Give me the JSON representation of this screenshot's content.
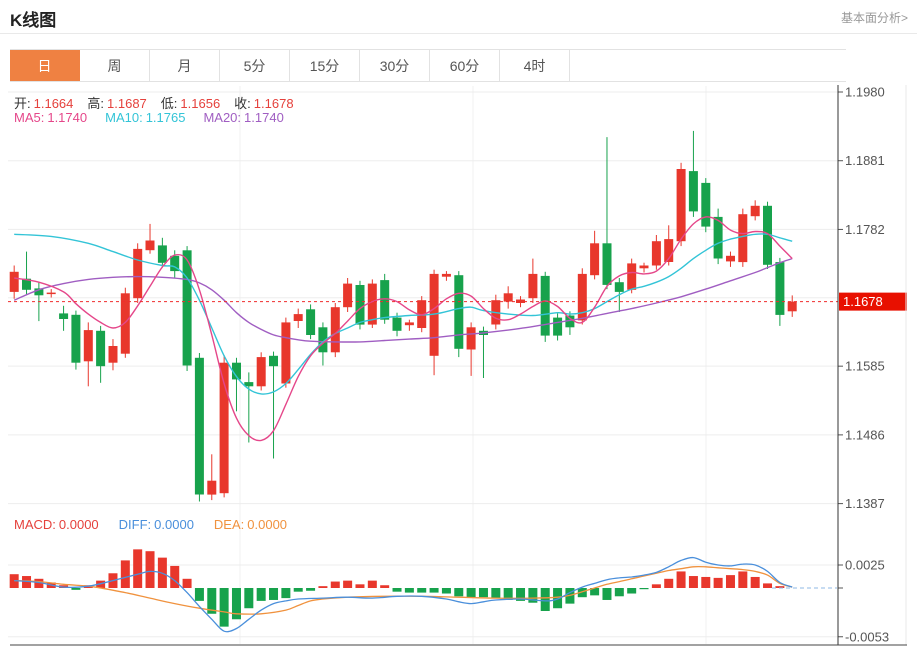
{
  "header": {
    "title": "K线图",
    "link": "基本面分析>"
  },
  "tabs": {
    "items": [
      "日",
      "周",
      "月",
      "5分",
      "15分",
      "30分",
      "60分",
      "4时"
    ],
    "selected": 0
  },
  "ohlc": {
    "open_label": "开:",
    "open": "1.1664",
    "high_label": "高:",
    "high": "1.1687",
    "low_label": "低:",
    "low": "1.1656",
    "close_label": "收:",
    "close": "1.1678"
  },
  "ma": {
    "ma5_label": "MA5:",
    "ma5": "1.1740",
    "ma10_label": "MA10:",
    "ma10": "1.1765",
    "ma20_label": "MA20:",
    "ma20": "1.1740"
  },
  "macd_header": {
    "macd_label": "MACD:",
    "macd": "0.0000",
    "diff_label": "DIFF:",
    "diff": "0.0000",
    "dea_label": "DEA:",
    "dea": "0.0000"
  },
  "colors": {
    "up": "#e8372c",
    "down": "#17a24c",
    "ma5": "#e5478a",
    "ma10": "#33c4d7",
    "ma20": "#a05ec2",
    "diff": "#4a8fdb",
    "dea": "#f0923e",
    "tab_accent": "#ef8142",
    "badge_bg": "#e81000",
    "value_red": "#e5413c",
    "axis_text": "#555",
    "grid": "#ededed",
    "vgrid": "#f0f0f0",
    "axis_line": "#333",
    "price_dash": "#ef2d2d",
    "zero_dash": "#8fb8e6"
  },
  "chart_data": {
    "type": "candlestick+macd",
    "price_axis": {
      "ticks": [
        {
          "label": "1.1980",
          "p": 1.198
        },
        {
          "label": "1.1881",
          "p": 1.1881
        },
        {
          "label": "1.1782",
          "p": 1.1782
        },
        {
          "label": "1.1585",
          "p": 1.1585
        },
        {
          "label": "1.1486",
          "p": 1.1486
        },
        {
          "label": "1.1387",
          "p": 1.1387
        }
      ],
      "unlabeled_grids": [
        1.16835
      ],
      "badge": {
        "label": "1.1678",
        "p": 1.1678
      }
    },
    "current_price": 1.1678,
    "candles": [
      [
        1.1692,
        1.173,
        1.1682,
        1.1721
      ],
      [
        1.1711,
        1.175,
        1.1688,
        1.1695
      ],
      [
        1.1697,
        1.1706,
        1.165,
        1.1687
      ],
      [
        1.1689,
        1.1696,
        1.1684,
        1.1691
      ],
      [
        1.1661,
        1.1672,
        1.1636,
        1.1653
      ],
      [
        1.1659,
        1.1665,
        1.158,
        1.159
      ],
      [
        1.1592,
        1.1648,
        1.1556,
        1.1637
      ],
      [
        1.1636,
        1.1643,
        1.1561,
        1.1585
      ],
      [
        1.159,
        1.1624,
        1.1579,
        1.1614
      ],
      [
        1.1603,
        1.1698,
        1.1597,
        1.169
      ],
      [
        1.1683,
        1.1762,
        1.1676,
        1.1754
      ],
      [
        1.1752,
        1.179,
        1.1747,
        1.1766
      ],
      [
        1.1759,
        1.177,
        1.1727,
        1.1734
      ],
      [
        1.1744,
        1.1752,
        1.1712,
        1.1722
      ],
      [
        1.1752,
        1.1758,
        1.1578,
        1.1586
      ],
      [
        1.1597,
        1.1604,
        1.139,
        1.14
      ],
      [
        1.14,
        1.1458,
        1.1392,
        1.142
      ],
      [
        1.1402,
        1.1601,
        1.1396,
        1.159
      ],
      [
        1.159,
        1.1597,
        1.152,
        1.1566
      ],
      [
        1.1562,
        1.1576,
        1.1475,
        1.1556
      ],
      [
        1.1556,
        1.1605,
        1.155,
        1.1598
      ],
      [
        1.16,
        1.1606,
        1.1452,
        1.1585
      ],
      [
        1.156,
        1.1655,
        1.1554,
        1.1648
      ],
      [
        1.165,
        1.1668,
        1.164,
        1.166
      ],
      [
        1.1667,
        1.1674,
        1.1624,
        1.163
      ],
      [
        1.1641,
        1.1648,
        1.1586,
        1.1605
      ],
      [
        1.1605,
        1.1676,
        1.1598,
        1.167
      ],
      [
        1.167,
        1.1712,
        1.1663,
        1.1704
      ],
      [
        1.1702,
        1.1708,
        1.1638,
        1.1645
      ],
      [
        1.1645,
        1.171,
        1.164,
        1.1704
      ],
      [
        1.1709,
        1.1718,
        1.1646,
        1.1652
      ],
      [
        1.1655,
        1.1662,
        1.1628,
        1.1636
      ],
      [
        1.1644,
        1.1652,
        1.1636,
        1.1648
      ],
      [
        1.164,
        1.1686,
        1.1634,
        1.168
      ],
      [
        1.16,
        1.1724,
        1.1572,
        1.1718
      ],
      [
        1.1714,
        1.1722,
        1.1708,
        1.1718
      ],
      [
        1.1716,
        1.1722,
        1.1598,
        1.161
      ],
      [
        1.1609,
        1.1648,
        1.1571,
        1.1641
      ],
      [
        1.1636,
        1.1642,
        1.1568,
        1.163
      ],
      [
        1.1645,
        1.1688,
        1.1638,
        1.168
      ],
      [
        1.1678,
        1.17,
        1.1668,
        1.169
      ],
      [
        1.1676,
        1.1686,
        1.167,
        1.1681
      ],
      [
        1.1683,
        1.174,
        1.1676,
        1.1718
      ],
      [
        1.1715,
        1.1721,
        1.162,
        1.1629
      ],
      [
        1.1655,
        1.1661,
        1.1622,
        1.1629
      ],
      [
        1.1658,
        1.1664,
        1.163,
        1.1641
      ],
      [
        1.1651,
        1.1726,
        1.1645,
        1.1718
      ],
      [
        1.1716,
        1.178,
        1.171,
        1.1762
      ],
      [
        1.1762,
        1.1915,
        1.1696,
        1.1702
      ],
      [
        1.1706,
        1.1712,
        1.1663,
        1.1692
      ],
      [
        1.1695,
        1.174,
        1.169,
        1.1733
      ],
      [
        1.1726,
        1.1734,
        1.172,
        1.173
      ],
      [
        1.173,
        1.1774,
        1.1724,
        1.1765
      ],
      [
        1.1735,
        1.1788,
        1.173,
        1.1768
      ],
      [
        1.1765,
        1.1878,
        1.1758,
        1.1869
      ],
      [
        1.1866,
        1.1924,
        1.18,
        1.1808
      ],
      [
        1.1849,
        1.1856,
        1.1778,
        1.1786
      ],
      [
        1.18,
        1.1812,
        1.1732,
        1.174
      ],
      [
        1.1736,
        1.175,
        1.1728,
        1.1744
      ],
      [
        1.1735,
        1.1812,
        1.1728,
        1.1804
      ],
      [
        1.1801,
        1.1824,
        1.1795,
        1.1816
      ],
      [
        1.1816,
        1.1822,
        1.1725,
        1.1731
      ],
      [
        1.1735,
        1.1741,
        1.1643,
        1.1659
      ],
      [
        1.1664,
        1.1687,
        1.1656,
        1.1678
      ]
    ],
    "ma5": [
      [
        0,
        1.1712
      ],
      [
        2,
        1.1706
      ],
      [
        4,
        1.1692
      ],
      [
        5,
        1.1675
      ],
      [
        6,
        1.166
      ],
      [
        7,
        1.1648
      ],
      [
        8,
        1.164
      ],
      [
        9,
        1.1648
      ],
      [
        10,
        1.1672
      ],
      [
        11,
        1.17
      ],
      [
        12,
        1.1728
      ],
      [
        13,
        1.1745
      ],
      [
        14,
        1.1738
      ],
      [
        15,
        1.1695
      ],
      [
        16,
        1.163
      ],
      [
        17,
        1.156
      ],
      [
        18,
        1.151
      ],
      [
        19,
        1.1485
      ],
      [
        20,
        1.1478
      ],
      [
        21,
        1.1492
      ],
      [
        22,
        1.153
      ],
      [
        23,
        1.157
      ],
      [
        24,
        1.16
      ],
      [
        25,
        1.1618
      ],
      [
        26,
        1.1632
      ],
      [
        27,
        1.165
      ],
      [
        28,
        1.1668
      ],
      [
        29,
        1.1678
      ],
      [
        30,
        1.1682
      ],
      [
        31,
        1.1678
      ],
      [
        32,
        1.1666
      ],
      [
        33,
        1.1659
      ],
      [
        34,
        1.1668
      ],
      [
        35,
        1.1682
      ],
      [
        36,
        1.169
      ],
      [
        37,
        1.1686
      ],
      [
        38,
        1.1668
      ],
      [
        39,
        1.1654
      ],
      [
        40,
        1.1652
      ],
      [
        41,
        1.166
      ],
      [
        42,
        1.1671
      ],
      [
        43,
        1.1679
      ],
      [
        44,
        1.1671
      ],
      [
        45,
        1.1654
      ],
      [
        46,
        1.1648
      ],
      [
        47,
        1.167
      ],
      [
        48,
        1.17
      ],
      [
        49,
        1.1715
      ],
      [
        50,
        1.172
      ],
      [
        51,
        1.1718
      ],
      [
        52,
        1.1722
      ],
      [
        53,
        1.174
      ],
      [
        54,
        1.1768
      ],
      [
        55,
        1.179
      ],
      [
        56,
        1.18
      ],
      [
        57,
        1.1795
      ],
      [
        58,
        1.1781
      ],
      [
        59,
        1.1776
      ],
      [
        60,
        1.1779
      ],
      [
        61,
        1.1776
      ],
      [
        62,
        1.1758
      ],
      [
        63,
        1.174
      ]
    ],
    "ma10": [
      [
        0,
        1.1775
      ],
      [
        3,
        1.1772
      ],
      [
        6,
        1.1762
      ],
      [
        8,
        1.175
      ],
      [
        10,
        1.1738
      ],
      [
        12,
        1.173
      ],
      [
        13,
        1.1728
      ],
      [
        14,
        1.1712
      ],
      [
        15,
        1.168
      ],
      [
        16,
        1.164
      ],
      [
        17,
        1.16
      ],
      [
        18,
        1.157
      ],
      [
        19,
        1.1552
      ],
      [
        20,
        1.1545
      ],
      [
        21,
        1.1548
      ],
      [
        22,
        1.156
      ],
      [
        23,
        1.158
      ],
      [
        24,
        1.1602
      ],
      [
        25,
        1.162
      ],
      [
        26,
        1.1632
      ],
      [
        27,
        1.164
      ],
      [
        28,
        1.1648
      ],
      [
        29,
        1.1652
      ],
      [
        30,
        1.1655
      ],
      [
        32,
        1.1658
      ],
      [
        34,
        1.166
      ],
      [
        36,
        1.1668
      ],
      [
        37,
        1.167
      ],
      [
        38,
        1.1665
      ],
      [
        40,
        1.166
      ],
      [
        42,
        1.1658
      ],
      [
        44,
        1.1662
      ],
      [
        45,
        1.166
      ],
      [
        46,
        1.1662
      ],
      [
        47,
        1.1668
      ],
      [
        48,
        1.1678
      ],
      [
        49,
        1.1688
      ],
      [
        50,
        1.1696
      ],
      [
        51,
        1.17
      ],
      [
        52,
        1.1706
      ],
      [
        53,
        1.1714
      ],
      [
        54,
        1.1726
      ],
      [
        55,
        1.174
      ],
      [
        56,
        1.1752
      ],
      [
        57,
        1.1762
      ],
      [
        58,
        1.1768
      ],
      [
        59,
        1.1772
      ],
      [
        60,
        1.1775
      ],
      [
        61,
        1.1775
      ],
      [
        62,
        1.177
      ],
      [
        63,
        1.1765
      ]
    ],
    "ma20": [
      [
        0,
        1.168
      ],
      [
        2,
        1.1695
      ],
      [
        4,
        1.1704
      ],
      [
        6,
        1.171
      ],
      [
        8,
        1.1713
      ],
      [
        10,
        1.1714
      ],
      [
        12,
        1.1713
      ],
      [
        14,
        1.171
      ],
      [
        15,
        1.1705
      ],
      [
        16,
        1.1695
      ],
      [
        17,
        1.168
      ],
      [
        18,
        1.1662
      ],
      [
        19,
        1.1648
      ],
      [
        20,
        1.1638
      ],
      [
        21,
        1.163
      ],
      [
        22,
        1.1626
      ],
      [
        23,
        1.1623
      ],
      [
        24,
        1.1621
      ],
      [
        26,
        1.162
      ],
      [
        28,
        1.162
      ],
      [
        30,
        1.1622
      ],
      [
        32,
        1.1624
      ],
      [
        34,
        1.1626
      ],
      [
        36,
        1.163
      ],
      [
        38,
        1.1633
      ],
      [
        40,
        1.1637
      ],
      [
        42,
        1.1642
      ],
      [
        44,
        1.1648
      ],
      [
        46,
        1.1654
      ],
      [
        48,
        1.1661
      ],
      [
        50,
        1.1668
      ],
      [
        52,
        1.1676
      ],
      [
        54,
        1.1685
      ],
      [
        56,
        1.1696
      ],
      [
        58,
        1.1708
      ],
      [
        60,
        1.172
      ],
      [
        61,
        1.1727
      ],
      [
        62,
        1.1734
      ],
      [
        63,
        1.174
      ]
    ],
    "macd": {
      "ticks": [
        {
          "label": "0.0025",
          "v": 0.0025
        },
        {
          "label": "-0.0053",
          "v": -0.0053
        }
      ],
      "unlabeled_ticks": [
        0
      ],
      "hist": [
        0.0015,
        0.0013,
        0.001,
        0.0006,
        0.0003,
        -0.0002,
        0.0003,
        0.0008,
        0.0016,
        0.003,
        0.0042,
        0.004,
        0.0033,
        0.0024,
        0.001,
        -0.0014,
        -0.0028,
        -0.0042,
        -0.0034,
        -0.0022,
        -0.0014,
        -0.0013,
        -0.0011,
        -0.0004,
        -0.0003,
        0.0002,
        0.0007,
        0.0008,
        0.0004,
        0.0008,
        0.0003,
        -0.0004,
        -0.0005,
        -0.0005,
        -0.0005,
        -0.0006,
        -0.0009,
        -0.001,
        -0.001,
        -0.0011,
        -0.0013,
        -0.0014,
        -0.0016,
        -0.0025,
        -0.0022,
        -0.0017,
        -0.001,
        -0.0008,
        -0.0013,
        -0.0009,
        -0.0006,
        -0.0001,
        0.0004,
        0.001,
        0.0018,
        0.0013,
        0.0012,
        0.0011,
        0.0014,
        0.0018,
        0.0012,
        0.0005,
        0.0002,
        0.0
      ],
      "diff": [
        [
          0,
          0.0008
        ],
        [
          2,
          0.0006
        ],
        [
          4,
          0.0001
        ],
        [
          6,
          0.0002
        ],
        [
          8,
          0.0008
        ],
        [
          10,
          0.0015
        ],
        [
          11,
          0.0018
        ],
        [
          12,
          0.0016
        ],
        [
          13,
          0.0008
        ],
        [
          14,
          -0.0005
        ],
        [
          15,
          -0.002
        ],
        [
          16,
          -0.0034
        ],
        [
          17,
          -0.0047
        ],
        [
          18,
          -0.0044
        ],
        [
          19,
          -0.0034
        ],
        [
          20,
          -0.0024
        ],
        [
          21,
          -0.0017
        ],
        [
          22,
          -0.0014
        ],
        [
          23,
          -0.0012
        ],
        [
          25,
          -0.0011
        ],
        [
          27,
          -0.001
        ],
        [
          29,
          -0.0011
        ],
        [
          31,
          -0.0009
        ],
        [
          33,
          -0.0009
        ],
        [
          35,
          -0.0012
        ],
        [
          36,
          -0.0015
        ],
        [
          37,
          -0.0017
        ],
        [
          38,
          -0.0015
        ],
        [
          39,
          -0.0013
        ],
        [
          41,
          -0.0012
        ],
        [
          43,
          -0.0014
        ],
        [
          44,
          -0.0012
        ],
        [
          45,
          -0.0005
        ],
        [
          46,
          0.0001
        ],
        [
          47,
          0.0005
        ],
        [
          48,
          0.0009
        ],
        [
          49,
          0.0011
        ],
        [
          50,
          0.0012
        ],
        [
          51,
          0.0014
        ],
        [
          52,
          0.0017
        ],
        [
          53,
          0.0023
        ],
        [
          54,
          0.003
        ],
        [
          55,
          0.0033
        ],
        [
          56,
          0.0028
        ],
        [
          57,
          0.0025
        ],
        [
          58,
          0.0024
        ],
        [
          59,
          0.0026
        ],
        [
          60,
          0.0025
        ],
        [
          61,
          0.0018
        ],
        [
          62,
          0.0006
        ],
        [
          63,
          0.0001
        ]
      ],
      "dea": [
        [
          0,
          0.0008
        ],
        [
          2,
          0.0007
        ],
        [
          4,
          0.0004
        ],
        [
          6,
          0.0002
        ],
        [
          7,
          0.0
        ],
        [
          9,
          -0.0005
        ],
        [
          11,
          -0.0011
        ],
        [
          13,
          -0.0017
        ],
        [
          15,
          -0.0022
        ],
        [
          17,
          -0.0026
        ],
        [
          18,
          -0.0028
        ],
        [
          20,
          -0.0028
        ],
        [
          22,
          -0.0024
        ],
        [
          23,
          -0.0019
        ],
        [
          24,
          -0.0014
        ],
        [
          25,
          -0.0012
        ],
        [
          27,
          -0.001
        ],
        [
          30,
          -0.0009
        ],
        [
          33,
          -0.0009
        ],
        [
          36,
          -0.001
        ],
        [
          39,
          -0.0011
        ],
        [
          42,
          -0.0011
        ],
        [
          44,
          -0.001
        ],
        [
          45,
          -0.0008
        ],
        [
          46,
          -0.0004
        ],
        [
          47,
          0.0
        ],
        [
          48,
          0.0004
        ],
        [
          49,
          0.0007
        ],
        [
          50,
          0.001
        ],
        [
          51,
          0.0013
        ],
        [
          52,
          0.0016
        ],
        [
          53,
          0.0019
        ],
        [
          54,
          0.0021
        ],
        [
          55,
          0.0023
        ],
        [
          56,
          0.0023
        ],
        [
          57,
          0.0022
        ],
        [
          58,
          0.0021
        ],
        [
          59,
          0.002
        ],
        [
          60,
          0.0018
        ],
        [
          61,
          0.0014
        ],
        [
          62,
          0.0005
        ],
        [
          63,
          0.0001
        ]
      ]
    }
  }
}
